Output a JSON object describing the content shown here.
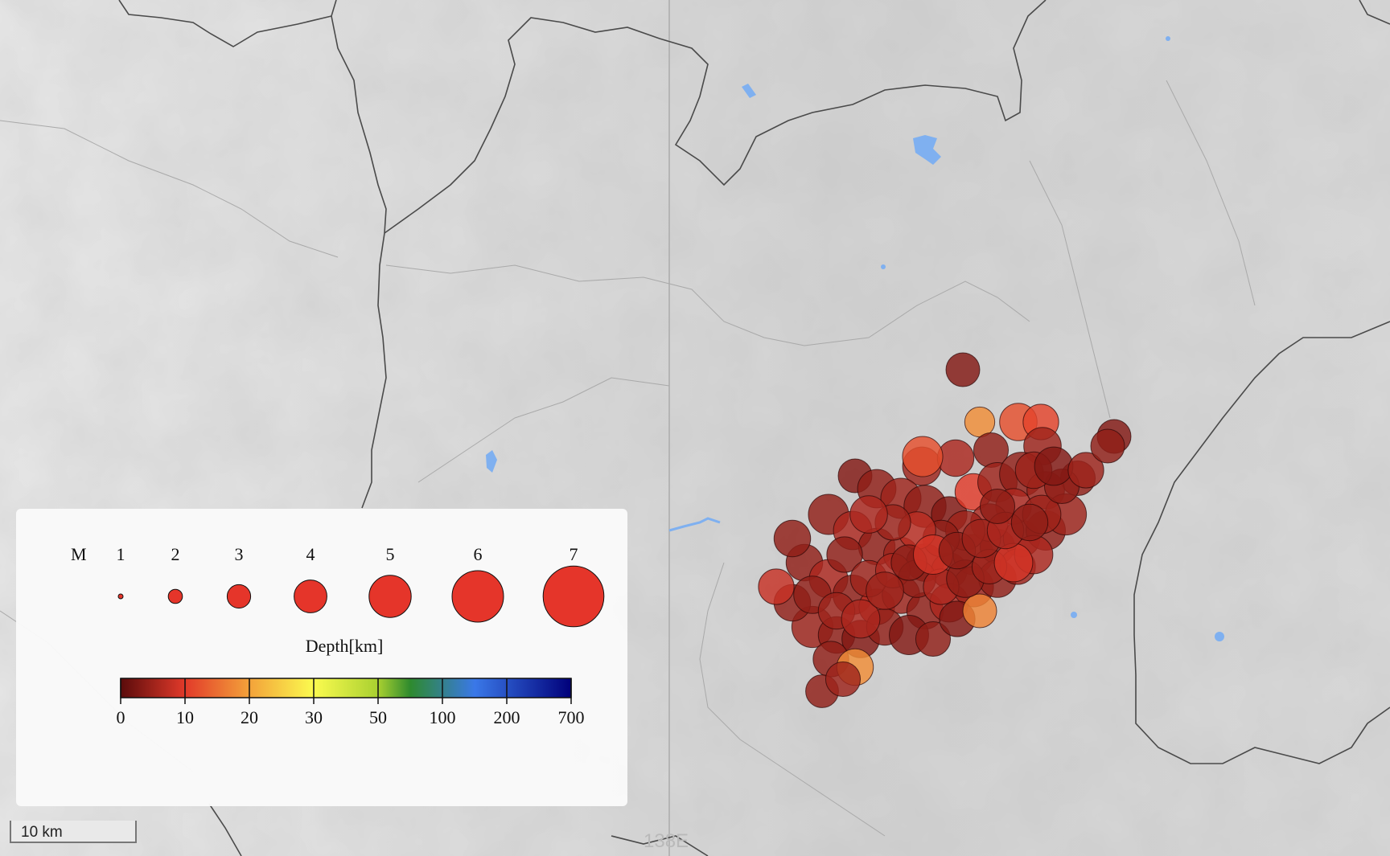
{
  "map": {
    "meridian_label": "138E",
    "scale_label": "10 km",
    "colors": {
      "background": "#d9d9d9",
      "relief_light": "#ececec",
      "relief_dark": "#bdbdbd",
      "border": "#4a4a4a",
      "water": "#7fb0f0"
    }
  },
  "legend": {
    "magnitude_title": "M",
    "magnitudes": [
      "1",
      "2",
      "3",
      "4",
      "5",
      "6",
      "7"
    ],
    "depth_title": "Depth[km]",
    "depth_ticks": [
      "0",
      "10",
      "20",
      "30",
      "50",
      "100",
      "200",
      "700"
    ],
    "depth_colors": [
      "#5a0b0b",
      "#e23a2a",
      "#f3a23a",
      "#fbfb4f",
      "#a8d030",
      "#2e8a2e",
      "#3a78e8",
      "#00007a"
    ],
    "symbol_color": "#e5352a"
  },
  "chart_data": {
    "type": "scatter",
    "title": "",
    "xlabel": "",
    "ylabel": "",
    "series": [
      {
        "values": [
          {
            "m": 4.1,
            "d": 3
          },
          {
            "m": 3.7,
            "d": 18
          },
          {
            "m": 4.5,
            "d": 12
          },
          {
            "m": 4.3,
            "d": 11
          },
          {
            "m": 4.6,
            "d": 5
          },
          {
            "m": 4.4,
            "d": 6
          },
          {
            "m": 4.1,
            "d": 3
          },
          {
            "m": 4.2,
            "d": 4
          },
          {
            "m": 4.8,
            "d": 12
          },
          {
            "m": 4.2,
            "d": 4
          },
          {
            "m": 4.5,
            "d": 5
          },
          {
            "m": 4.1,
            "d": 3
          },
          {
            "m": 4.6,
            "d": 4
          },
          {
            "m": 4.8,
            "d": 5
          },
          {
            "m": 5.0,
            "d": 4
          },
          {
            "m": 4.3,
            "d": 3
          },
          {
            "m": 4.4,
            "d": 10
          },
          {
            "m": 4.7,
            "d": 5
          },
          {
            "m": 5.2,
            "d": 4
          },
          {
            "m": 4.5,
            "d": 5
          },
          {
            "m": 4.8,
            "d": 4
          },
          {
            "m": 4.6,
            "d": 6
          },
          {
            "m": 4.4,
            "d": 4
          },
          {
            "m": 4.2,
            "d": 5
          },
          {
            "m": 4.5,
            "d": 3
          },
          {
            "m": 4.3,
            "d": 4
          },
          {
            "m": 4.8,
            "d": 5
          },
          {
            "m": 4.2,
            "d": 3
          },
          {
            "m": 4.4,
            "d": 5
          },
          {
            "m": 4.7,
            "d": 4
          },
          {
            "m": 4.9,
            "d": 5
          },
          {
            "m": 4.4,
            "d": 4
          },
          {
            "m": 4.6,
            "d": 6
          },
          {
            "m": 4.7,
            "d": 4
          },
          {
            "m": 4.3,
            "d": 7
          },
          {
            "m": 4.5,
            "d": 5
          },
          {
            "m": 4.4,
            "d": 4
          },
          {
            "m": 4.6,
            "d": 6
          },
          {
            "m": 4.8,
            "d": 5
          },
          {
            "m": 4.5,
            "d": 4
          },
          {
            "m": 4.3,
            "d": 5
          },
          {
            "m": 4.6,
            "d": 6
          },
          {
            "m": 4.4,
            "d": 4
          },
          {
            "m": 4.9,
            "d": 5
          },
          {
            "m": 4.4,
            "d": 4
          },
          {
            "m": 4.5,
            "d": 3
          },
          {
            "m": 4.4,
            "d": 4
          },
          {
            "m": 4.7,
            "d": 3
          },
          {
            "m": 4.2,
            "d": 4
          },
          {
            "m": 4.3,
            "d": 3
          },
          {
            "m": 4.1,
            "d": 17
          },
          {
            "m": 4.3,
            "d": 4
          },
          {
            "m": 4.4,
            "d": 18
          },
          {
            "m": 4.0,
            "d": 4
          },
          {
            "m": 4.2,
            "d": 5
          },
          {
            "m": 4.3,
            "d": 6
          },
          {
            "m": 4.6,
            "d": 5
          },
          {
            "m": 4.2,
            "d": 4
          },
          {
            "m": 4.4,
            "d": 5
          },
          {
            "m": 4.5,
            "d": 6
          },
          {
            "m": 4.7,
            "d": 5
          },
          {
            "m": 4.4,
            "d": 4
          },
          {
            "m": 4.5,
            "d": 7
          },
          {
            "m": 4.3,
            "d": 5
          },
          {
            "m": 4.5,
            "d": 6
          },
          {
            "m": 4.3,
            "d": 4
          },
          {
            "m": 4.4,
            "d": 5
          },
          {
            "m": 4.2,
            "d": 6
          },
          {
            "m": 4.5,
            "d": 4
          },
          {
            "m": 4.3,
            "d": 6
          },
          {
            "m": 4.5,
            "d": 4
          },
          {
            "m": 4.2,
            "d": 5
          },
          {
            "m": 4.6,
            "d": 9
          },
          {
            "m": 4.4,
            "d": 4
          },
          {
            "m": 4.3,
            "d": 8
          },
          {
            "m": 4.5,
            "d": 4
          },
          {
            "m": 4.4,
            "d": 5
          },
          {
            "m": 4.6,
            "d": 6
          },
          {
            "m": 4.5,
            "d": 5
          },
          {
            "m": 4.3,
            "d": 4
          },
          {
            "m": 4.7,
            "d": 9
          },
          {
            "m": 4.4,
            "d": 4
          },
          {
            "m": 4.6,
            "d": 5
          },
          {
            "m": 4.4,
            "d": 6
          },
          {
            "m": 4.4,
            "d": 4
          },
          {
            "m": 4.6,
            "d": 3
          },
          {
            "m": 4.3,
            "d": 5
          },
          {
            "m": 4.1,
            "d": 4
          },
          {
            "m": 4.2,
            "d": 4
          }
        ]
      }
    ]
  }
}
